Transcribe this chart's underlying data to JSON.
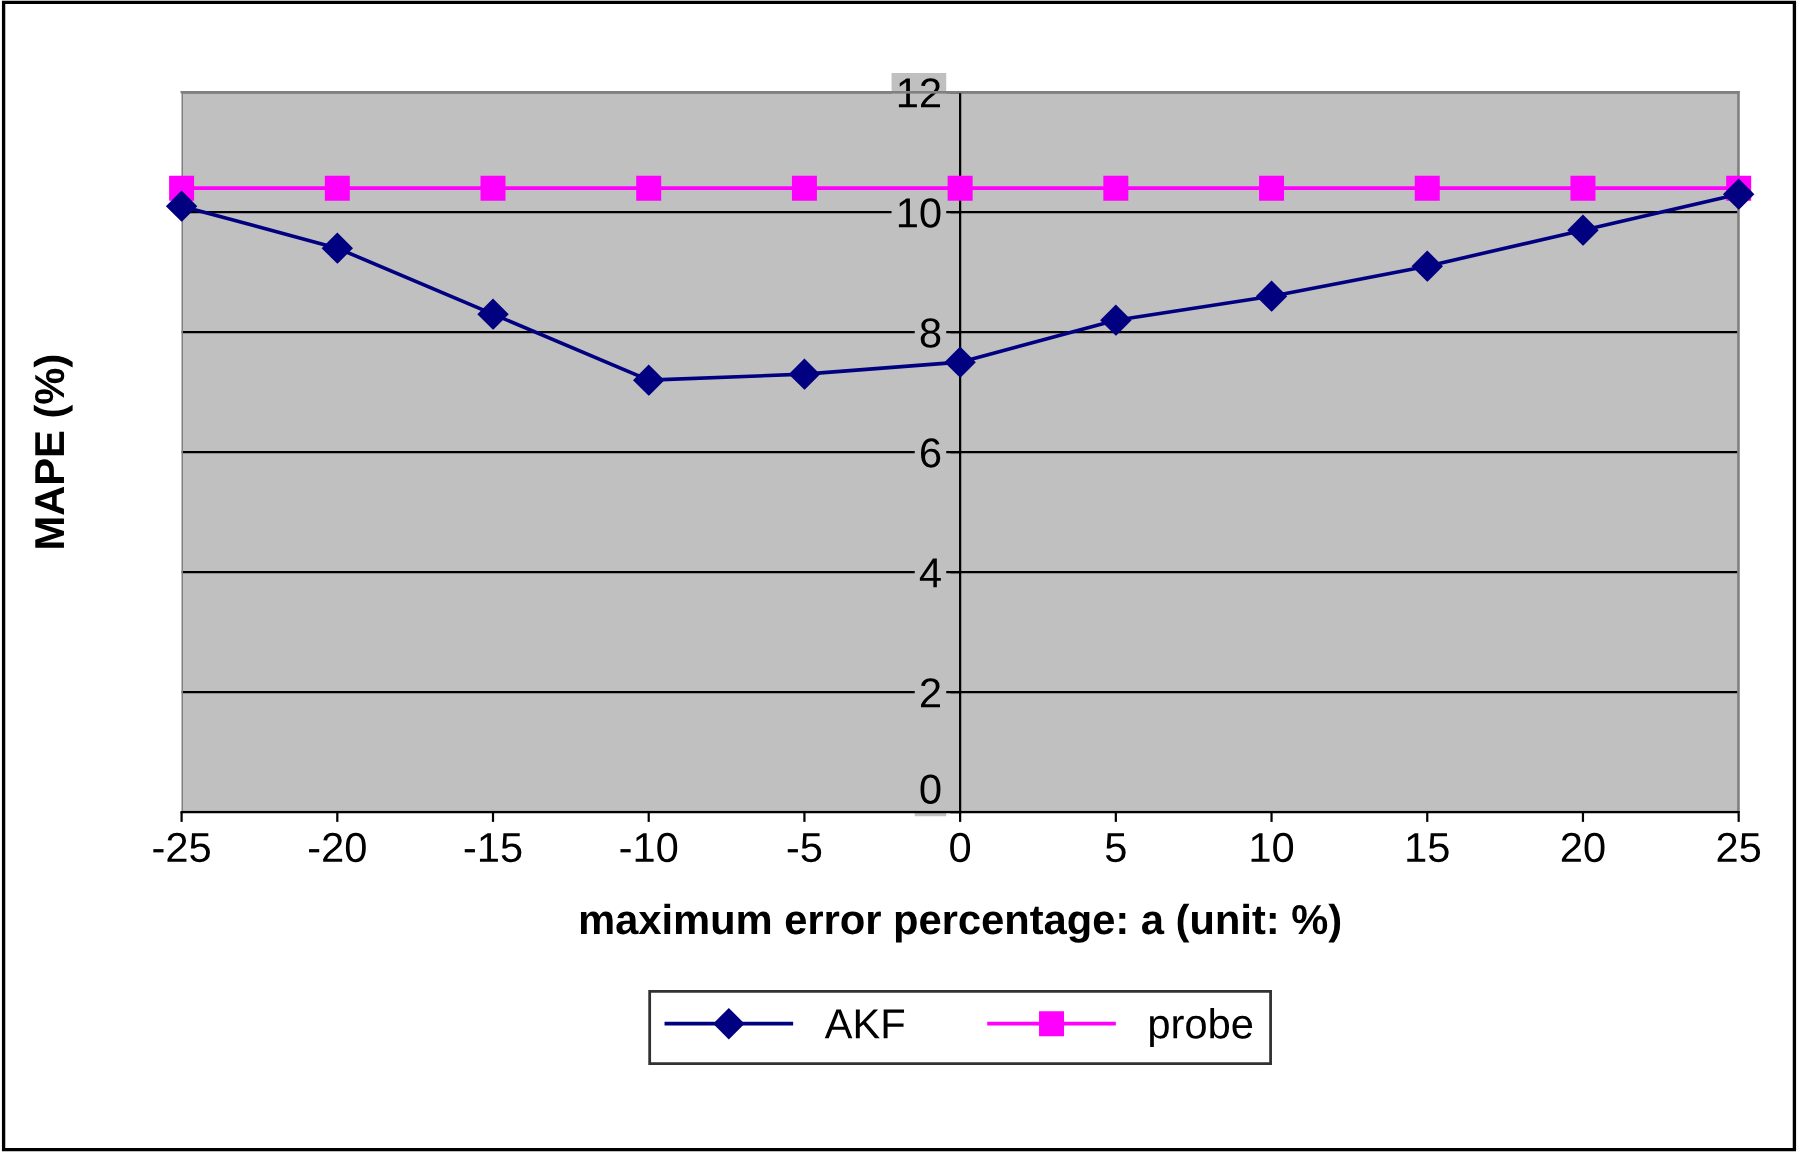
{
  "chart_data": {
    "type": "line",
    "xlabel": "maximum error percentage: a (unit: %)",
    "ylabel": "MAPE (%)",
    "x": [
      -25,
      -20,
      -15,
      -10,
      -5,
      0,
      5,
      10,
      15,
      20,
      25
    ],
    "series": [
      {
        "name": "AKF",
        "color": "#000080",
        "marker": "diamond",
        "values": [
          10.1,
          9.4,
          8.3,
          7.2,
          7.3,
          7.5,
          8.2,
          8.6,
          9.1,
          9.7,
          10.3
        ]
      },
      {
        "name": "probe",
        "color": "#ff00ff",
        "marker": "square",
        "values": [
          10.4,
          10.4,
          10.4,
          10.4,
          10.4,
          10.4,
          10.4,
          10.4,
          10.4,
          10.4,
          10.4
        ]
      }
    ],
    "xlim": [
      -25,
      25
    ],
    "xticks": [
      -25,
      -20,
      -15,
      -10,
      -5,
      0,
      5,
      10,
      15,
      20,
      25
    ],
    "ylim": [
      0,
      12
    ],
    "yticks": [
      0,
      2,
      4,
      6,
      8,
      10,
      12
    ],
    "grid": "y",
    "legend": "bottom",
    "line_style": "solid"
  }
}
